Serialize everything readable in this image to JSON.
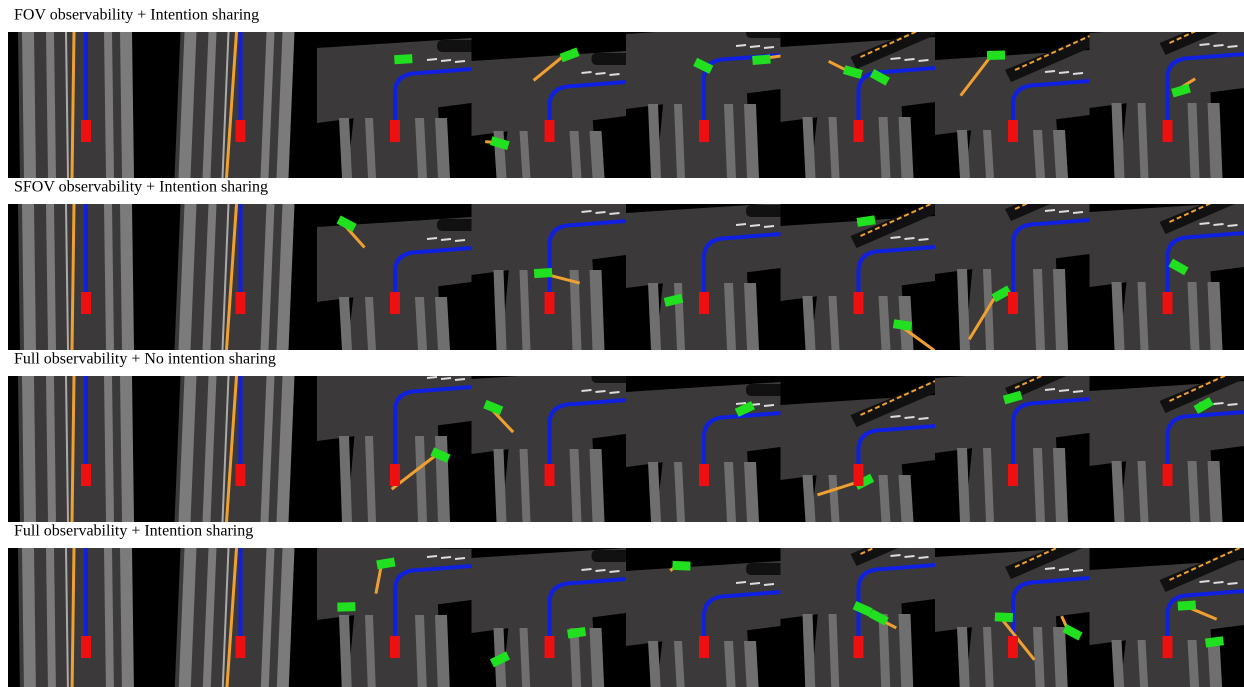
{
  "rows": [
    {
      "title": "FOV observability + Intention sharing"
    },
    {
      "title": "SFOV observability + Intention sharing"
    },
    {
      "title": "Full observability + No intention sharing"
    },
    {
      "title": "Full observability + Intention sharing"
    }
  ]
}
